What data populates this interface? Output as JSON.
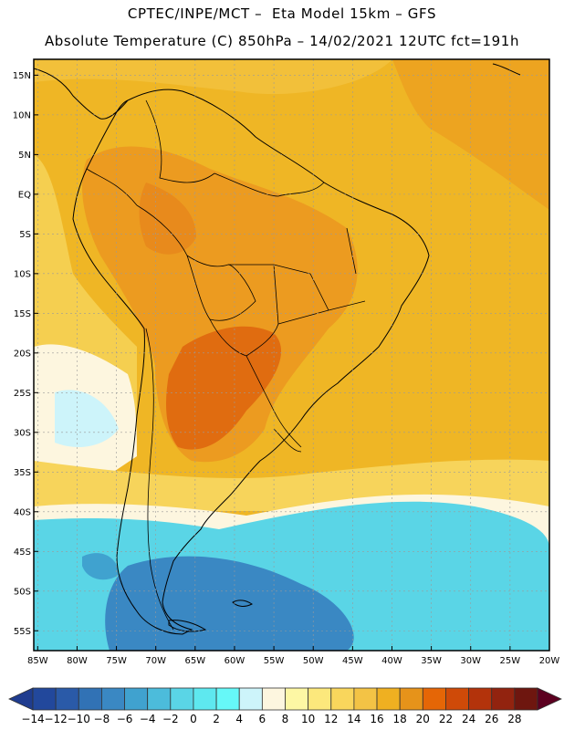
{
  "title_line1": "CPTEC/INPE/MCT –  Eta Model 15km – GFS",
  "title_line2": "Absolute Temperature (C) 850hPa – 14/02/2021 12UTC fct=191h",
  "lat_labels": [
    "15N",
    "10N",
    "5N",
    "EQ",
    "5S",
    "10S",
    "15S",
    "20S",
    "25S",
    "30S",
    "35S",
    "40S",
    "45S",
    "50S",
    "55S"
  ],
  "lat_values": [
    15,
    10,
    5,
    0,
    -5,
    -10,
    -15,
    -20,
    -25,
    -30,
    -35,
    -40,
    -45,
    -50,
    -55
  ],
  "lon_labels": [
    "85W",
    "80W",
    "75W",
    "70W",
    "65W",
    "60W",
    "55W",
    "50W",
    "45W",
    "40W",
    "35W",
    "30W",
    "25W",
    "20W"
  ],
  "lon_values": [
    -85,
    -80,
    -75,
    -70,
    -65,
    -60,
    -55,
    -50,
    -45,
    -40,
    -35,
    -30,
    -25,
    -20
  ],
  "extent": {
    "lon_min": -85.5,
    "lon_max": -20,
    "lat_min": -57.5,
    "lat_max": 17
  },
  "colorbar": {
    "labels": [
      "-14",
      "-12",
      "-10",
      "-8",
      "-6",
      "-4",
      "-2",
      "0",
      "2",
      "4",
      "6",
      "8",
      "10",
      "12",
      "14",
      "16",
      "18",
      "20",
      "22",
      "24",
      "26",
      "28"
    ],
    "colors": [
      "#1f3c8f",
      "#22489c",
      "#2a5aa8",
      "#3172b5",
      "#3a88c3",
      "#40a2cf",
      "#4cbcdb",
      "#5ad5e6",
      "#5ee8ef",
      "#66f8f8",
      "#cdf4fa",
      "#fdf6df",
      "#fdf7a4",
      "#fce87c",
      "#f9d65c",
      "#f3c345",
      "#efb021",
      "#e6931a",
      "#e56606",
      "#cf4a08",
      "#b3330b",
      "#92230f",
      "#6e160f",
      "#5c0020"
    ]
  },
  "map_colors": {
    "ocean_tropical": "#efb625",
    "land_warm": "#ec9b20",
    "land_hot": "#e26e10",
    "temperate": "#f7d45b",
    "cool": "#fdf6df",
    "cold": "#5ad5e6",
    "coldest": "#3a88c3",
    "border": "#000000"
  }
}
